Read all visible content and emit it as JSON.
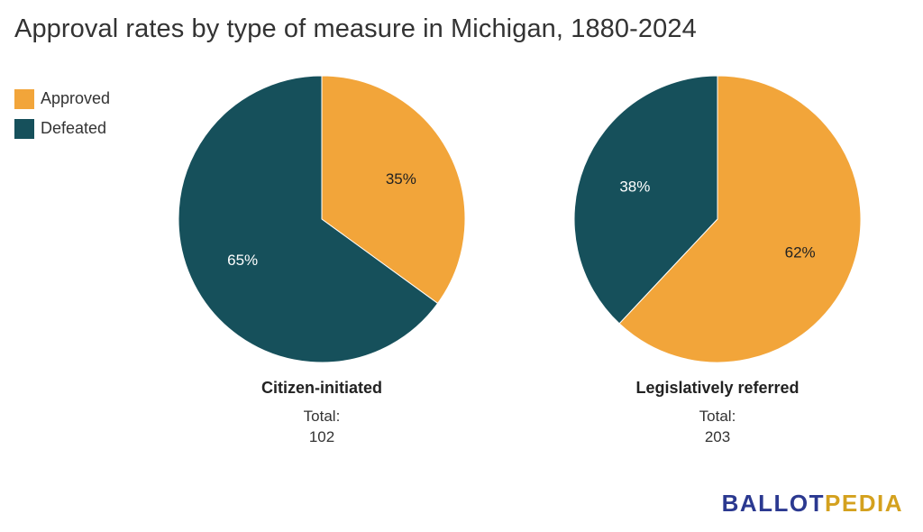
{
  "title": "Approval rates by type of measure in Michigan, 1880-2024",
  "legend": [
    {
      "label": "Approved",
      "color": "#F2A53A"
    },
    {
      "label": "Defeated",
      "color": "#16505B"
    }
  ],
  "brand": {
    "part1": "BALLOT",
    "part2": "PEDIA",
    "color1": "#2B3990",
    "color2": "#D4A11E"
  },
  "chart_data": [
    {
      "type": "pie",
      "title": "Citizen-initiated",
      "total_label": "Total:",
      "total_value": "102",
      "slices": [
        {
          "name": "Approved",
          "value": 35,
          "label": "35%",
          "color": "#F2A53A"
        },
        {
          "name": "Defeated",
          "value": 65,
          "label": "65%",
          "color": "#16505B"
        }
      ]
    },
    {
      "type": "pie",
      "title": "Legislatively referred",
      "total_label": "Total:",
      "total_value": "203",
      "slices": [
        {
          "name": "Approved",
          "value": 62,
          "label": "62%",
          "color": "#F2A53A"
        },
        {
          "name": "Defeated",
          "value": 38,
          "label": "38%",
          "color": "#16505B"
        }
      ]
    }
  ]
}
